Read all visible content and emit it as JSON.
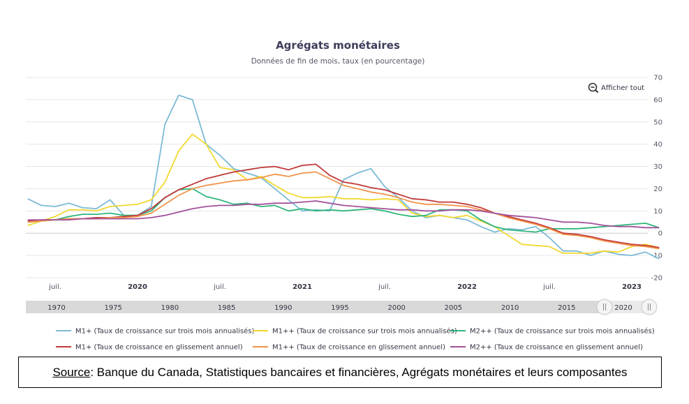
{
  "chart_data": {
    "type": "line",
    "title": "Agrégats monétaires",
    "subtitle": "Données de fin de mois, taux (en pourcentage)",
    "ylim": [
      -20,
      70
    ],
    "yticks": [
      70,
      60,
      50,
      40,
      30,
      20,
      10,
      0,
      -10,
      -20
    ],
    "x_ticks": [
      {
        "label": "juil.",
        "date": "2019-07",
        "bold": false
      },
      {
        "label": "2020",
        "date": "2020-01",
        "bold": true
      },
      {
        "label": "juil.",
        "date": "2020-07",
        "bold": false
      },
      {
        "label": "2021",
        "date": "2021-01",
        "bold": true
      },
      {
        "label": "juil.",
        "date": "2021-07",
        "bold": false
      },
      {
        "label": "2022",
        "date": "2022-01",
        "bold": true
      },
      {
        "label": "juil.",
        "date": "2022-07",
        "bold": false
      },
      {
        "label": "2023",
        "date": "2023-01",
        "bold": true
      }
    ],
    "x": [
      "2019-05",
      "2019-06",
      "2019-07",
      "2019-08",
      "2019-09",
      "2019-10",
      "2019-11",
      "2019-12",
      "2020-01",
      "2020-02",
      "2020-03",
      "2020-04",
      "2020-05",
      "2020-06",
      "2020-07",
      "2020-08",
      "2020-09",
      "2020-10",
      "2020-11",
      "2020-12",
      "2021-01",
      "2021-02",
      "2021-03",
      "2021-04",
      "2021-05",
      "2021-06",
      "2021-07",
      "2021-08",
      "2021-09",
      "2021-10",
      "2021-11",
      "2021-12",
      "2022-01",
      "2022-02",
      "2022-03",
      "2022-04",
      "2022-05",
      "2022-06",
      "2022-07",
      "2022-08",
      "2022-09",
      "2022-10",
      "2022-11",
      "2022-12",
      "2023-01",
      "2023-02",
      "2023-03"
    ],
    "series": [
      {
        "name": "M1+ (Taux de croissance sur trois mois annualisés)",
        "color": "#7bbad6",
        "values": [
          15.5,
          12.5,
          12,
          13.5,
          11.5,
          11,
          15,
          8,
          8,
          12,
          49,
          62,
          60,
          40,
          35,
          29,
          27,
          25,
          20,
          15,
          10,
          10.5,
          10,
          24,
          27,
          29,
          21,
          16,
          10,
          7,
          8,
          7,
          6,
          3,
          0.5,
          2,
          1.5,
          3,
          -2,
          -8,
          -8,
          -10,
          -8,
          -9.5,
          -10,
          -8.5,
          -11.5
        ]
      },
      {
        "name": "M1++ (Taux de croissance sur trois mois annualisés)",
        "color": "#f2d82e",
        "values": [
          3.5,
          5.5,
          7.5,
          10.5,
          10.5,
          10,
          12,
          12.5,
          13,
          15,
          23,
          37,
          44.5,
          40,
          29.5,
          28.5,
          24,
          25.5,
          21.5,
          18,
          16,
          16,
          16.5,
          15.5,
          15.5,
          15,
          15.5,
          15,
          9,
          7.5,
          8,
          7,
          8,
          5.5,
          3,
          -1,
          -5,
          -5.5,
          -6,
          -9,
          -9,
          -9,
          -8,
          -8.5,
          -6,
          -5,
          -6.5
        ]
      },
      {
        "name": "M2++ (Taux de croissance sur trois mois annualisés)",
        "color": "#2fb67c",
        "values": [
          5,
          5.5,
          6,
          7.5,
          8.5,
          8.5,
          9,
          8,
          8,
          10,
          16,
          19.5,
          20,
          16.5,
          15,
          13,
          13.5,
          12,
          12.5,
          10,
          11,
          10,
          10.5,
          10,
          10.5,
          11,
          10,
          8.5,
          7.5,
          8,
          10.5,
          10.5,
          10,
          6,
          3,
          1.5,
          1,
          0.5,
          2,
          2,
          2,
          2.5,
          3,
          3.5,
          4,
          4.5,
          2.5
        ]
      },
      {
        "name": "M1+ (Taux de croissance en glissement annuel)",
        "color": "#c0393b",
        "values": [
          5.5,
          6,
          6,
          6.5,
          6.5,
          7,
          7,
          7.5,
          8,
          11,
          16,
          19.5,
          22,
          24.5,
          26,
          27.5,
          28.5,
          29.5,
          30,
          28.5,
          30.5,
          31,
          26,
          23,
          22,
          20.5,
          19.5,
          17.5,
          15.5,
          15,
          14,
          14,
          13,
          11.5,
          9,
          7.5,
          6,
          4.5,
          2.5,
          0,
          -0.5,
          -1.5,
          -3,
          -4,
          -5,
          -5.5,
          -6.5
        ]
      },
      {
        "name": "M1++ (Taux de croissance en glissement annuel)",
        "color": "#f0944a",
        "values": [
          5,
          5.5,
          6,
          6.5,
          6.5,
          6.5,
          7,
          7,
          7.5,
          9,
          13,
          17,
          20,
          21.5,
          22.5,
          23.5,
          24,
          25,
          26.5,
          25.5,
          27,
          27.5,
          24.5,
          21.5,
          20,
          18.5,
          17.5,
          16,
          14,
          13,
          13,
          12.5,
          12,
          10.5,
          9,
          7,
          5.5,
          4,
          2,
          -0.5,
          -1,
          -2,
          -3.5,
          -4.5,
          -5.5,
          -6,
          -7
        ]
      },
      {
        "name": "M2++ (Taux de croissance en glissement annuel)",
        "color": "#a3509b",
        "values": [
          6,
          6,
          6,
          6,
          6.5,
          6.5,
          6.5,
          6.5,
          6.5,
          7,
          8,
          9.5,
          11,
          12,
          12.5,
          12.5,
          13,
          13,
          13.5,
          13.5,
          14,
          14.5,
          13.5,
          12.5,
          12,
          11.5,
          11,
          10.5,
          10.5,
          10,
          10,
          10.5,
          10.5,
          10,
          9,
          8,
          7.5,
          7,
          6,
          5,
          5,
          4.5,
          3.5,
          3,
          3,
          2.5,
          2.5
        ]
      }
    ]
  },
  "reset_zoom": {
    "label": "Afficher tout",
    "icon": "zoom-out-icon"
  },
  "navigator": {
    "labels": [
      "1970",
      "1975",
      "1980",
      "1985",
      "1990",
      "1995",
      "2000",
      "2005",
      "2010",
      "2015",
      "2020"
    ]
  },
  "source": {
    "label": "Source",
    "text": " : Banque du Canada, Statistiques bancaires et financières, Agrégats monétaires et leurs composantes"
  }
}
